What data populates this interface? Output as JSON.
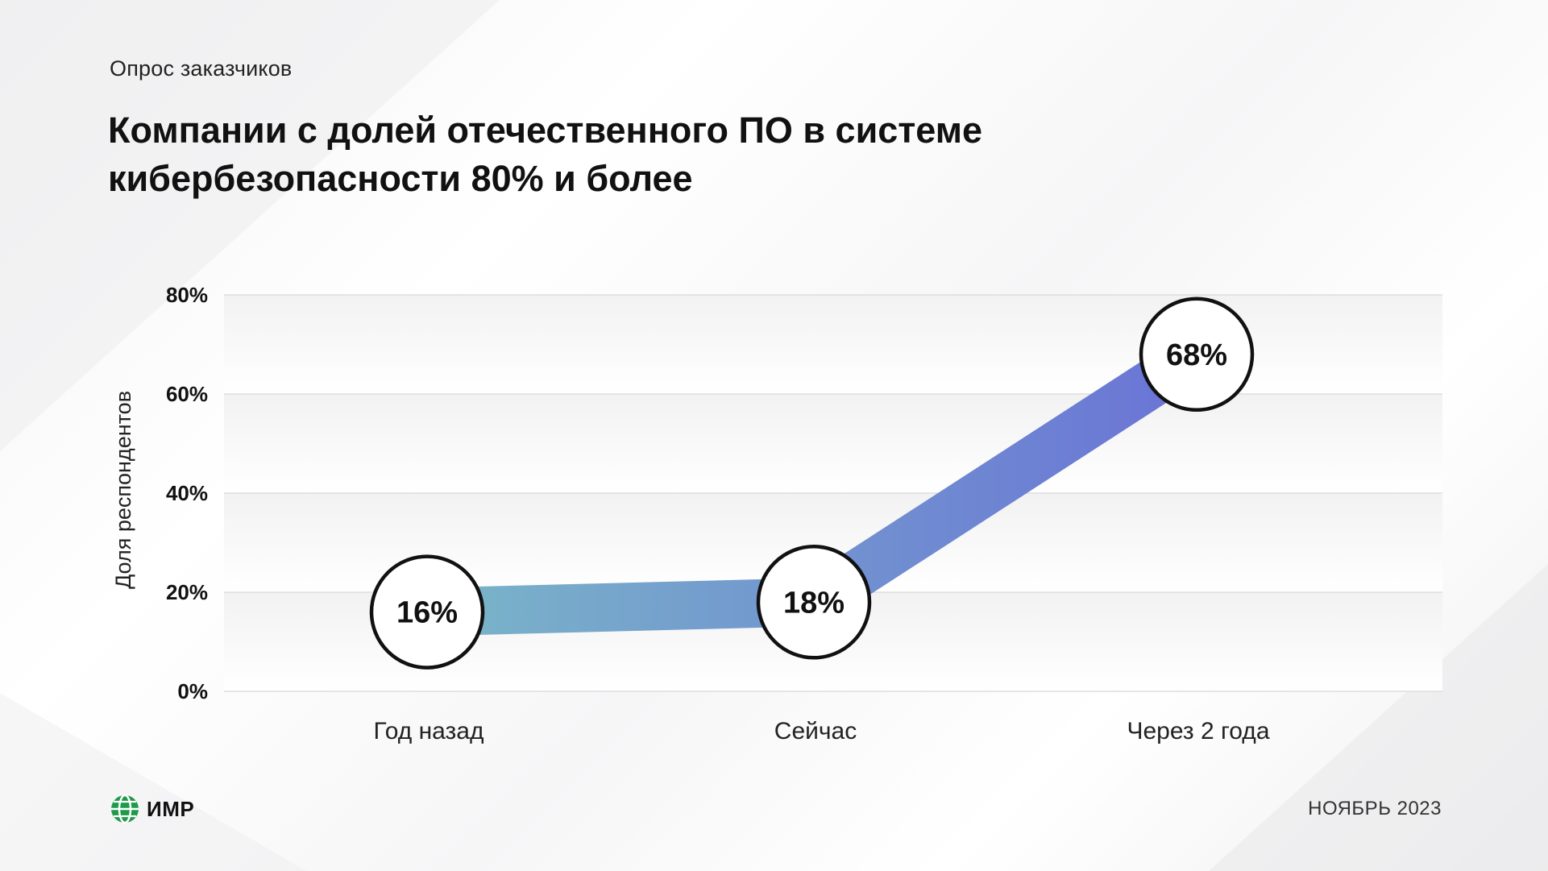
{
  "header": {
    "kicker": "Опрос заказчиков",
    "title": "Компании с долей отечественного ПО в системе кибербезопасности 80% и более"
  },
  "chart_data": {
    "type": "line",
    "title": "Компании с долей отечественного ПО в системе кибербезопасности 80% и более",
    "ylabel": "Доля респондентов",
    "xlabel": "",
    "categories": [
      "Год назад",
      "Сейчас",
      "Через 2 года"
    ],
    "series": [
      {
        "values": [
          16,
          18,
          68
        ],
        "labels": [
          "16%",
          "18%",
          "68%"
        ]
      }
    ],
    "ylim": [
      0,
      80
    ],
    "yticks": [
      0,
      20,
      40,
      60,
      80
    ],
    "yticklabels": [
      "0%",
      "20%",
      "40%",
      "60%",
      "80%"
    ],
    "grid": true,
    "colors": {
      "line_start": "#7ab6c8",
      "line_end": "#6a73d6",
      "marker_fill": "#ffffff",
      "marker_stroke": "#111111",
      "grid": "#dddddd"
    }
  },
  "footer": {
    "logo_text": "ИМР",
    "logo_icon": "globe-icon",
    "date": "НОЯБРЬ 2023"
  }
}
